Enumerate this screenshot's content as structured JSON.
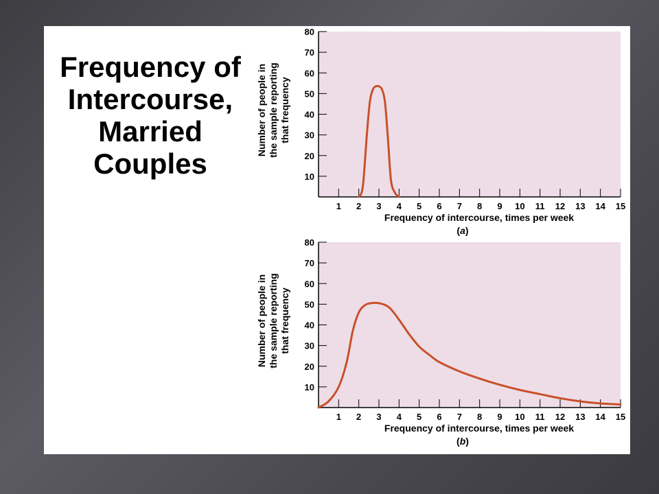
{
  "slide": {
    "title_lines": [
      "Frequency of",
      "Intercourse,",
      "Married",
      "Couples"
    ]
  },
  "chart_data": [
    {
      "type": "line",
      "caption_letter": "a",
      "xlabel": "Frequency of intercourse, times per week",
      "ylabel_lines": [
        "Number of people in",
        "the sample reporting",
        "that frequency"
      ],
      "xlim": [
        0,
        15
      ],
      "ylim": [
        0,
        80
      ],
      "xticks": [
        1,
        2,
        3,
        4,
        5,
        6,
        7,
        8,
        9,
        10,
        11,
        12,
        13,
        14,
        15
      ],
      "yticks": [
        10,
        20,
        30,
        40,
        50,
        60,
        70,
        80
      ],
      "grid": false,
      "series": [
        {
          "color": "#c8502a",
          "x": [
            2.0,
            2.2,
            2.4,
            2.55,
            2.7,
            2.85,
            3.0,
            3.15,
            3.3,
            3.45,
            3.6,
            3.8,
            4.0
          ],
          "y": [
            0,
            5,
            30,
            46,
            52,
            53.5,
            53.5,
            52,
            46,
            28,
            8,
            2,
            0
          ]
        }
      ]
    },
    {
      "type": "line",
      "caption_letter": "b",
      "xlabel": "Frequency of intercourse, times per week",
      "ylabel_lines": [
        "Number of people in",
        "the sample reporting",
        "that frequency"
      ],
      "xlim": [
        0,
        15
      ],
      "ylim": [
        0,
        80
      ],
      "xticks": [
        1,
        2,
        3,
        4,
        5,
        6,
        7,
        8,
        9,
        10,
        11,
        12,
        13,
        14,
        15
      ],
      "yticks": [
        10,
        20,
        30,
        40,
        50,
        60,
        70,
        80
      ],
      "grid": false,
      "series": [
        {
          "color": "#c8502a",
          "x": [
            0,
            0.5,
            1.0,
            1.4,
            1.7,
            2.0,
            2.3,
            2.6,
            3.0,
            3.5,
            4.0,
            4.5,
            5.0,
            5.5,
            6.0,
            7.0,
            8.0,
            9.0,
            10.0,
            11.0,
            12.0,
            13.0,
            14.0,
            15.0
          ],
          "y": [
            0,
            3,
            10,
            22,
            37,
            46,
            49.5,
            50.5,
            50.5,
            48.5,
            42.5,
            35.5,
            29.5,
            25.5,
            22,
            17.5,
            14,
            11,
            8.5,
            6.5,
            4.5,
            3,
            2,
            1.5
          ]
        }
      ]
    }
  ]
}
